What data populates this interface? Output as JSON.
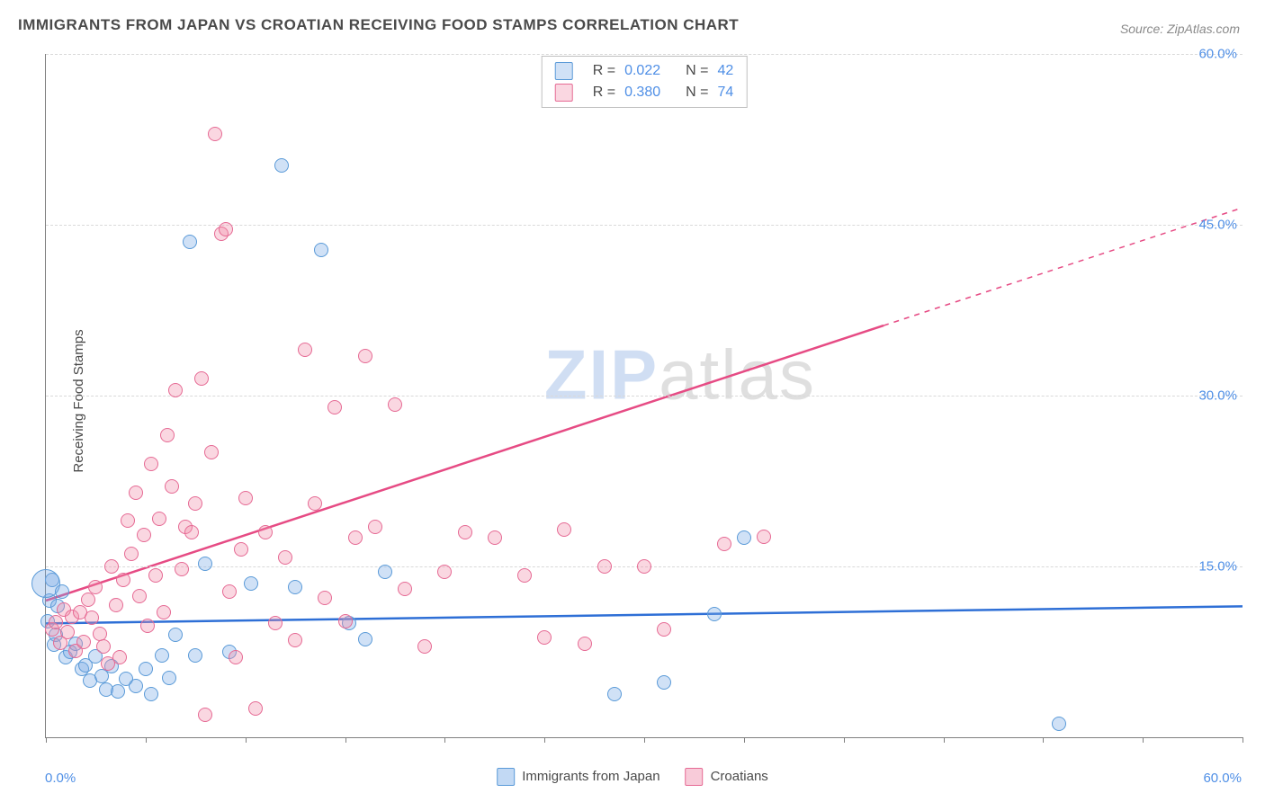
{
  "title": "IMMIGRANTS FROM JAPAN VS CROATIAN RECEIVING FOOD STAMPS CORRELATION CHART",
  "source_label": "Source:",
  "source_value": "ZipAtlas.com",
  "ylabel": "Receiving Food Stamps",
  "watermark": {
    "part1": "ZIP",
    "part2": "atlas"
  },
  "chart": {
    "type": "scatter",
    "xlim": [
      0,
      60
    ],
    "ylim": [
      0,
      60
    ],
    "x_min_label": "0.0%",
    "x_max_label": "60.0%",
    "y_ticks": [
      15,
      30,
      45,
      60
    ],
    "y_tick_labels": [
      "15.0%",
      "30.0%",
      "45.0%",
      "60.0%"
    ],
    "x_tick_positions": [
      0,
      5,
      10,
      15,
      20,
      25,
      30,
      35,
      40,
      45,
      50,
      55,
      60
    ],
    "grid_color": "#d9d9d9",
    "axis_color": "#808080",
    "background_color": "#ffffff",
    "tick_label_color": "#4f8fe6",
    "point_radius": 8,
    "point_border_width": 1.5,
    "series": [
      {
        "id": "japan",
        "label": "Immigrants from Japan",
        "R": "0.022",
        "N": "42",
        "fill": "rgba(120,170,230,0.35)",
        "stroke": "#5a9ad8",
        "line_color": "#2e6fd6",
        "line_width": 2.5,
        "trend": {
          "x1": 0,
          "y1": 10.0,
          "x2": 60,
          "y2": 11.5,
          "dash_from_x": 60
        },
        "points": [
          [
            0.2,
            12.0
          ],
          [
            0.3,
            13.8
          ],
          [
            0.1,
            10.2
          ],
          [
            0.5,
            9.0
          ],
          [
            0.4,
            8.1
          ],
          [
            0.6,
            11.5
          ],
          [
            1.0,
            7.0
          ],
          [
            1.2,
            7.5
          ],
          [
            1.5,
            8.2
          ],
          [
            1.8,
            6.0
          ],
          [
            2.0,
            6.3
          ],
          [
            2.2,
            5.0
          ],
          [
            2.5,
            7.1
          ],
          [
            2.8,
            5.4
          ],
          [
            3.0,
            4.2
          ],
          [
            3.3,
            6.2
          ],
          [
            3.6,
            4.0
          ],
          [
            4.0,
            5.1
          ],
          [
            4.5,
            4.5
          ],
          [
            5.0,
            6.0
          ],
          [
            5.3,
            3.8
          ],
          [
            5.8,
            7.2
          ],
          [
            6.2,
            5.2
          ],
          [
            6.5,
            9.0
          ],
          [
            7.2,
            43.5
          ],
          [
            7.5,
            7.2
          ],
          [
            8.0,
            15.2
          ],
          [
            9.2,
            7.5
          ],
          [
            10.3,
            13.5
          ],
          [
            11.8,
            50.2
          ],
          [
            12.5,
            13.2
          ],
          [
            13.8,
            42.8
          ],
          [
            15.2,
            10.0
          ],
          [
            16.0,
            8.6
          ],
          [
            17.0,
            14.5
          ],
          [
            28.5,
            3.8
          ],
          [
            31.0,
            4.8
          ],
          [
            33.5,
            10.8
          ],
          [
            35.0,
            17.5
          ],
          [
            50.8,
            1.2
          ],
          [
            0.0,
            13.5,
            16
          ],
          [
            0.8,
            12.8
          ]
        ]
      },
      {
        "id": "croatians",
        "label": "Croatians",
        "R": "0.380",
        "N": "74",
        "fill": "rgba(240,140,170,0.35)",
        "stroke": "#e66a94",
        "line_color": "#e64b84",
        "line_width": 2.5,
        "trend": {
          "x1": 0,
          "y1": 12.0,
          "x2": 60,
          "y2": 46.5,
          "dash_from_x": 42
        },
        "points": [
          [
            0.3,
            9.5
          ],
          [
            0.5,
            10.1
          ],
          [
            0.7,
            8.3
          ],
          [
            0.9,
            11.2
          ],
          [
            1.1,
            9.2
          ],
          [
            1.3,
            10.6
          ],
          [
            1.5,
            7.6
          ],
          [
            1.7,
            11.0
          ],
          [
            1.9,
            8.4
          ],
          [
            2.1,
            12.1
          ],
          [
            2.3,
            10.5
          ],
          [
            2.5,
            13.2
          ],
          [
            2.7,
            9.1
          ],
          [
            2.9,
            8.0
          ],
          [
            3.1,
            6.5
          ],
          [
            3.3,
            15.0
          ],
          [
            3.5,
            11.6
          ],
          [
            3.7,
            7.0
          ],
          [
            3.9,
            13.8
          ],
          [
            4.1,
            19.0
          ],
          [
            4.3,
            16.1
          ],
          [
            4.5,
            21.5
          ],
          [
            4.7,
            12.4
          ],
          [
            4.9,
            17.8
          ],
          [
            5.1,
            9.8
          ],
          [
            5.3,
            24.0
          ],
          [
            5.5,
            14.2
          ],
          [
            5.7,
            19.2
          ],
          [
            5.9,
            11.0
          ],
          [
            6.1,
            26.5
          ],
          [
            6.3,
            22.0
          ],
          [
            6.5,
            30.5
          ],
          [
            6.8,
            14.8
          ],
          [
            7.0,
            18.5
          ],
          [
            7.3,
            18.0
          ],
          [
            7.5,
            20.5
          ],
          [
            7.8,
            31.5
          ],
          [
            8.0,
            2.0
          ],
          [
            8.3,
            25.0
          ],
          [
            8.5,
            53.0
          ],
          [
            8.8,
            44.2
          ],
          [
            9.0,
            44.6
          ],
          [
            9.2,
            12.8
          ],
          [
            9.5,
            7.0
          ],
          [
            9.8,
            16.5
          ],
          [
            10.0,
            21.0
          ],
          [
            10.5,
            2.5
          ],
          [
            11.0,
            18.0
          ],
          [
            11.5,
            10.0
          ],
          [
            12.0,
            15.8
          ],
          [
            12.5,
            8.5
          ],
          [
            13.0,
            34.0
          ],
          [
            13.5,
            20.5
          ],
          [
            14.0,
            12.2
          ],
          [
            14.5,
            29.0
          ],
          [
            15.0,
            10.2
          ],
          [
            15.5,
            17.5
          ],
          [
            16.0,
            33.5
          ],
          [
            16.5,
            18.5
          ],
          [
            17.5,
            29.2
          ],
          [
            18.0,
            13.0
          ],
          [
            19.0,
            8.0
          ],
          [
            20.0,
            14.5
          ],
          [
            21.0,
            18.0
          ],
          [
            22.5,
            17.5
          ],
          [
            24.0,
            14.2
          ],
          [
            25.0,
            8.8
          ],
          [
            26.0,
            18.2
          ],
          [
            27.0,
            8.2
          ],
          [
            28.0,
            15.0
          ],
          [
            30.0,
            15.0
          ],
          [
            31.0,
            9.5
          ],
          [
            34.0,
            17.0
          ],
          [
            36.0,
            17.6
          ]
        ]
      }
    ]
  },
  "bottom_legend": [
    {
      "label": "Immigrants from Japan",
      "fill": "rgba(120,170,230,0.45)",
      "stroke": "#5a9ad8"
    },
    {
      "label": "Croatians",
      "fill": "rgba(240,140,170,0.45)",
      "stroke": "#e66a94"
    }
  ]
}
